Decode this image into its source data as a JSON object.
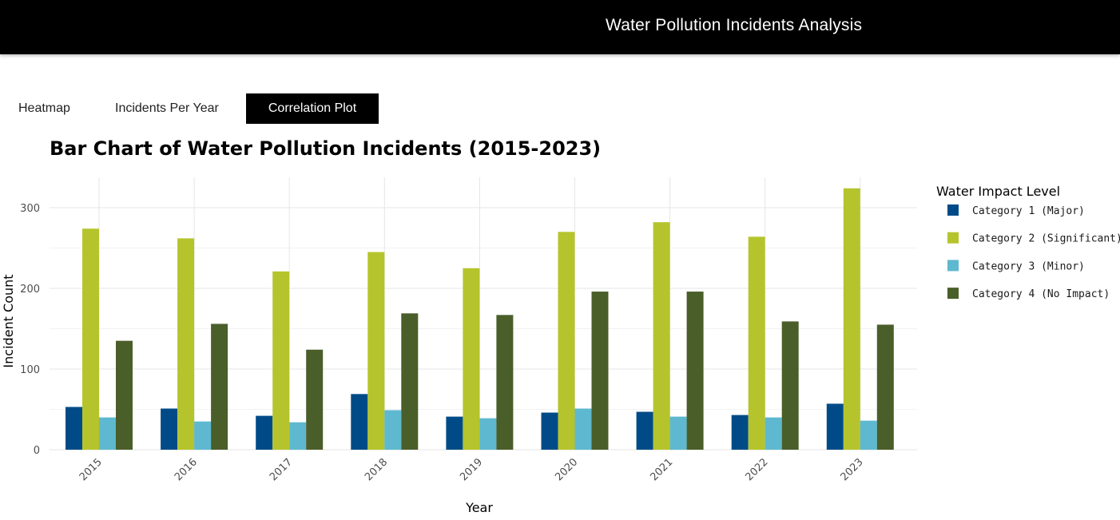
{
  "header": {
    "title": "Water Pollution Incidents Analysis"
  },
  "tabs": [
    {
      "label": "Heatmap",
      "active": false
    },
    {
      "label": "Incidents Per Year",
      "active": false
    },
    {
      "label": "Correlation Plot",
      "active": true
    }
  ],
  "chart_data": {
    "type": "bar",
    "title": "Bar Chart of Water Pollution Incidents (2015-2023)",
    "xlabel": "Year",
    "ylabel": "Incident Count",
    "categories": [
      "2015",
      "2016",
      "2017",
      "2018",
      "2019",
      "2020",
      "2021",
      "2022",
      "2023"
    ],
    "yticks": [
      "0",
      "100",
      "200",
      "300"
    ],
    "ylim": [
      0,
      340
    ],
    "grid": true,
    "legend_title": "Water Impact Level",
    "legend_position": "right",
    "series": [
      {
        "name": "Category 1 (Major)",
        "color": "#004b87",
        "values": [
          53,
          51,
          42,
          69,
          41,
          46,
          47,
          43,
          57
        ]
      },
      {
        "name": "Category 2 (Significant)",
        "color": "#b5c42c",
        "values": [
          274,
          262,
          221,
          245,
          225,
          270,
          282,
          264,
          324
        ]
      },
      {
        "name": "Category 3 (Minor)",
        "color": "#5eb8cf",
        "values": [
          40,
          35,
          34,
          49,
          39,
          51,
          41,
          40,
          36
        ]
      },
      {
        "name": "Category 4 (No Impact)",
        "color": "#4a5e2a",
        "values": [
          135,
          156,
          124,
          169,
          167,
          196,
          196,
          159,
          155
        ]
      }
    ]
  }
}
